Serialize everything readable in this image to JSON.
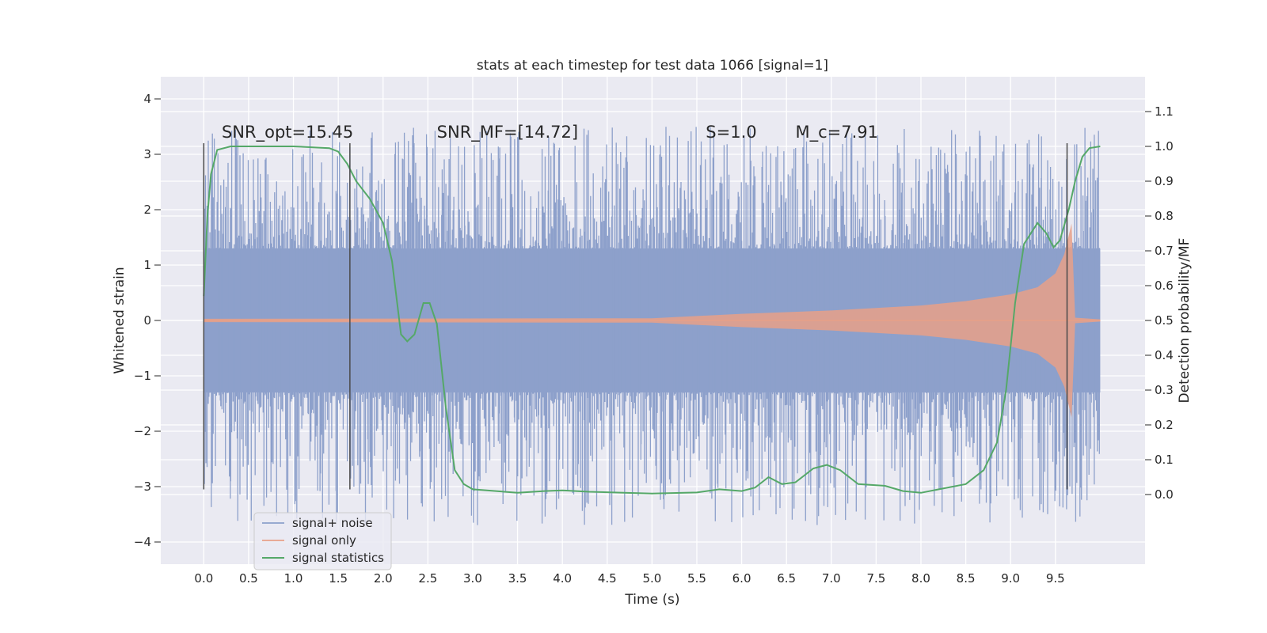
{
  "chart_data": {
    "type": "line",
    "title": "stats at each timestep for test data 1066 [signal=1]",
    "xlabel": "Time (s)",
    "ylabel_left": "Whitened strain",
    "ylabel_right": "Detection probability/MF",
    "xlim": [
      -0.48,
      10.5
    ],
    "ylim_left": [
      -4.4,
      4.4
    ],
    "ylim_right": [
      -0.2,
      1.2
    ],
    "x_ticks": [
      "0.0",
      "0.5",
      "1.0",
      "1.5",
      "2.0",
      "2.5",
      "3.0",
      "3.5",
      "4.0",
      "4.5",
      "5.0",
      "5.5",
      "6.0",
      "6.5",
      "7.0",
      "7.5",
      "8.0",
      "8.5",
      "9.0",
      "9.5"
    ],
    "y_left_ticks": [
      "−4",
      "−3",
      "−2",
      "−1",
      "0",
      "1",
      "2",
      "3",
      "4"
    ],
    "y_right_ticks": [
      "0.0",
      "0.1",
      "0.2",
      "0.3",
      "0.4",
      "0.5",
      "0.6",
      "0.7",
      "0.8",
      "0.9",
      "1.0",
      "1.1"
    ],
    "grid": true,
    "legend_position": "lower-left",
    "series": [
      {
        "name": "signal+ noise",
        "axis": "left",
        "kind": "noise_band",
        "x_range": [
          0.0,
          10.0
        ],
        "core_amplitude": 1.3,
        "spike_max": 3.5,
        "spike_min": -3.7,
        "color": "#8da0cb"
      },
      {
        "name": "signal only",
        "axis": "left",
        "kind": "chirp_envelope",
        "envelope": [
          {
            "x": 0.0,
            "y": 0.03
          },
          {
            "x": 5.0,
            "y": 0.04
          },
          {
            "x": 6.0,
            "y": 0.12
          },
          {
            "x": 7.0,
            "y": 0.18
          },
          {
            "x": 8.0,
            "y": 0.27
          },
          {
            "x": 8.5,
            "y": 0.35
          },
          {
            "x": 9.0,
            "y": 0.47
          },
          {
            "x": 9.3,
            "y": 0.6
          },
          {
            "x": 9.5,
            "y": 0.85
          },
          {
            "x": 9.6,
            "y": 1.2
          },
          {
            "x": 9.68,
            "y": 1.75
          },
          {
            "x": 9.72,
            "y": 0.05
          },
          {
            "x": 10.0,
            "y": 0.02
          }
        ],
        "color": "#e8a088"
      },
      {
        "name": "signal statistics",
        "axis": "right",
        "kind": "line",
        "points": [
          {
            "x": 0.0,
            "y": 0.57
          },
          {
            "x": 0.04,
            "y": 0.8
          },
          {
            "x": 0.08,
            "y": 0.92
          },
          {
            "x": 0.15,
            "y": 0.99
          },
          {
            "x": 0.3,
            "y": 1.0
          },
          {
            "x": 1.0,
            "y": 1.0
          },
          {
            "x": 1.4,
            "y": 0.995
          },
          {
            "x": 1.5,
            "y": 0.985
          },
          {
            "x": 1.6,
            "y": 0.95
          },
          {
            "x": 1.7,
            "y": 0.9
          },
          {
            "x": 1.85,
            "y": 0.85
          },
          {
            "x": 2.0,
            "y": 0.78
          },
          {
            "x": 2.1,
            "y": 0.67
          },
          {
            "x": 2.2,
            "y": 0.46
          },
          {
            "x": 2.27,
            "y": 0.44
          },
          {
            "x": 2.35,
            "y": 0.46
          },
          {
            "x": 2.45,
            "y": 0.55
          },
          {
            "x": 2.52,
            "y": 0.55
          },
          {
            "x": 2.6,
            "y": 0.49
          },
          {
            "x": 2.7,
            "y": 0.25
          },
          {
            "x": 2.8,
            "y": 0.07
          },
          {
            "x": 2.9,
            "y": 0.03
          },
          {
            "x": 3.0,
            "y": 0.015
          },
          {
            "x": 3.5,
            "y": 0.005
          },
          {
            "x": 3.8,
            "y": 0.01
          },
          {
            "x": 4.0,
            "y": 0.012
          },
          {
            "x": 4.3,
            "y": 0.008
          },
          {
            "x": 5.0,
            "y": 0.003
          },
          {
            "x": 5.5,
            "y": 0.006
          },
          {
            "x": 5.75,
            "y": 0.015
          },
          {
            "x": 6.0,
            "y": 0.01
          },
          {
            "x": 6.15,
            "y": 0.02
          },
          {
            "x": 6.3,
            "y": 0.05
          },
          {
            "x": 6.45,
            "y": 0.03
          },
          {
            "x": 6.6,
            "y": 0.035
          },
          {
            "x": 6.8,
            "y": 0.075
          },
          {
            "x": 6.95,
            "y": 0.085
          },
          {
            "x": 7.1,
            "y": 0.07
          },
          {
            "x": 7.3,
            "y": 0.03
          },
          {
            "x": 7.6,
            "y": 0.025
          },
          {
            "x": 7.8,
            "y": 0.01
          },
          {
            "x": 8.0,
            "y": 0.005
          },
          {
            "x": 8.2,
            "y": 0.015
          },
          {
            "x": 8.5,
            "y": 0.03
          },
          {
            "x": 8.7,
            "y": 0.07
          },
          {
            "x": 8.85,
            "y": 0.15
          },
          {
            "x": 8.95,
            "y": 0.3
          },
          {
            "x": 9.05,
            "y": 0.55
          },
          {
            "x": 9.15,
            "y": 0.72
          },
          {
            "x": 9.3,
            "y": 0.78
          },
          {
            "x": 9.4,
            "y": 0.75
          },
          {
            "x": 9.48,
            "y": 0.71
          },
          {
            "x": 9.55,
            "y": 0.73
          },
          {
            "x": 9.65,
            "y": 0.82
          },
          {
            "x": 9.72,
            "y": 0.9
          },
          {
            "x": 9.8,
            "y": 0.97
          },
          {
            "x": 9.88,
            "y": 0.995
          },
          {
            "x": 10.0,
            "y": 1.0
          }
        ],
        "color": "#55a868"
      }
    ],
    "vertical_markers": [
      {
        "x": 0.0,
        "y_top": 3.2,
        "y_bottom": -3.05
      },
      {
        "x": 1.63,
        "y_top": 3.2,
        "y_bottom": -3.05
      },
      {
        "x": 9.63,
        "y_top": 3.2,
        "y_bottom": -3.05
      }
    ],
    "annotations": [
      {
        "text": "SNR_opt=15.45",
        "x": 0.2,
        "y": 3.3
      },
      {
        "text": "SNR_MF=[14.72]",
        "x": 2.6,
        "y": 3.3
      },
      {
        "text": "S=1.0",
        "x": 5.6,
        "y": 3.3
      },
      {
        "text": "M_c=7.91",
        "x": 6.6,
        "y": 3.3
      }
    ]
  }
}
